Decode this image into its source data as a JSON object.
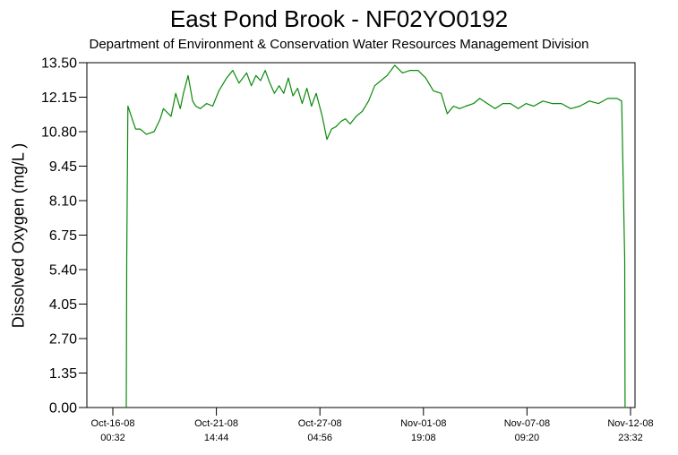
{
  "chart_data": {
    "type": "line",
    "title": "East Pond Brook - NF02YO0192",
    "subtitle": "Department of Environment & Conservation Water Resources Management Division",
    "ylabel": "Dissolved Oxygen (mg/L )",
    "xlabel": "",
    "ylim": [
      0,
      13.5
    ],
    "yticks": [
      "0.00",
      "1.35",
      "2.70",
      "4.05",
      "5.40",
      "6.75",
      "8.10",
      "9.45",
      "10.80",
      "12.15",
      "13.50"
    ],
    "xticks": [
      {
        "line1": "Oct-16-08",
        "line2": "00:32"
      },
      {
        "line1": "Oct-21-08",
        "line2": "14:44"
      },
      {
        "line1": "Oct-27-08",
        "line2": "04:56"
      },
      {
        "line1": "Nov-01-08",
        "line2": "19:08"
      },
      {
        "line1": "Nov-07-08",
        "line2": "09:20"
      },
      {
        "line1": "Nov-12-08",
        "line2": "23:32"
      }
    ],
    "grid": false,
    "series": [
      {
        "color": "#0a8a0a",
        "x": [
          "2008-10-16 18:00",
          "2008-10-16 18:30",
          "2008-10-16 20:00",
          "2008-10-17 06:00",
          "2008-10-17 12:00",
          "2008-10-17 20:00",
          "2008-10-18 06:00",
          "2008-10-18 14:00",
          "2008-10-18 18:00",
          "2008-10-19 04:00",
          "2008-10-19 10:00",
          "2008-10-19 16:00",
          "2008-10-19 20:00",
          "2008-10-20 02:00",
          "2008-10-20 08:00",
          "2008-10-20 12:00",
          "2008-10-20 18:00",
          "2008-10-21 02:00",
          "2008-10-21 10:00",
          "2008-10-21 18:00",
          "2008-10-22 04:00",
          "2008-10-22 12:00",
          "2008-10-22 20:00",
          "2008-10-23 06:00",
          "2008-10-23 12:00",
          "2008-10-23 18:00",
          "2008-10-24 00:00",
          "2008-10-24 06:00",
          "2008-10-24 12:00",
          "2008-10-24 18:00",
          "2008-10-25 00:00",
          "2008-10-25 06:00",
          "2008-10-25 12:00",
          "2008-10-25 18:00",
          "2008-10-26 00:00",
          "2008-10-26 06:00",
          "2008-10-26 12:00",
          "2008-10-26 18:00",
          "2008-10-27 00:00",
          "2008-10-27 08:00",
          "2008-10-27 14:00",
          "2008-10-27 20:00",
          "2008-10-28 02:00",
          "2008-10-28 08:00",
          "2008-10-28 14:00",
          "2008-10-28 20:00",
          "2008-10-29 04:00",
          "2008-10-29 12:00",
          "2008-10-29 20:00",
          "2008-10-30 04:00",
          "2008-10-30 12:00",
          "2008-10-30 20:00",
          "2008-10-31 06:00",
          "2008-10-31 16:00",
          "2008-11-01 02:00",
          "2008-11-01 12:00",
          "2008-11-01 22:00",
          "2008-11-02 08:00",
          "2008-11-02 18:00",
          "2008-11-03 02:00",
          "2008-11-03 10:00",
          "2008-11-03 18:00",
          "2008-11-04 02:00",
          "2008-11-04 12:00",
          "2008-11-04 20:00",
          "2008-11-05 06:00",
          "2008-11-05 16:00",
          "2008-11-06 02:00",
          "2008-11-06 12:00",
          "2008-11-06 22:00",
          "2008-11-07 08:00",
          "2008-11-07 18:00",
          "2008-11-08 06:00",
          "2008-11-08 18:00",
          "2008-11-09 06:00",
          "2008-11-09 18:00",
          "2008-11-10 06:00",
          "2008-11-10 18:00",
          "2008-11-11 06:00",
          "2008-11-11 18:00",
          "2008-11-12 06:00",
          "2008-11-12 12:00",
          "2008-11-12 16:00",
          "2008-11-12 16:30",
          "2008-11-12 17:00"
        ],
        "y": [
          0.0,
          5.8,
          11.8,
          10.9,
          10.9,
          10.7,
          10.8,
          11.3,
          11.7,
          11.4,
          12.3,
          11.7,
          12.3,
          13.0,
          12.0,
          11.8,
          11.7,
          11.9,
          11.8,
          12.4,
          12.9,
          13.2,
          12.7,
          13.1,
          12.6,
          13.0,
          12.8,
          13.2,
          12.7,
          12.3,
          12.6,
          12.3,
          12.9,
          12.2,
          12.5,
          11.9,
          12.5,
          11.8,
          12.3,
          11.4,
          10.5,
          10.9,
          11.0,
          11.2,
          11.3,
          11.1,
          11.4,
          11.6,
          12.0,
          12.6,
          12.8,
          13.0,
          13.4,
          13.1,
          13.2,
          13.2,
          12.9,
          12.4,
          12.3,
          11.5,
          11.8,
          11.7,
          11.8,
          11.9,
          12.1,
          11.9,
          11.7,
          11.9,
          11.9,
          11.7,
          11.9,
          11.8,
          12.0,
          11.9,
          11.9,
          11.7,
          11.8,
          12.0,
          11.9,
          12.1,
          12.1,
          12.0,
          5.8,
          0.0,
          0.0
        ]
      }
    ]
  }
}
